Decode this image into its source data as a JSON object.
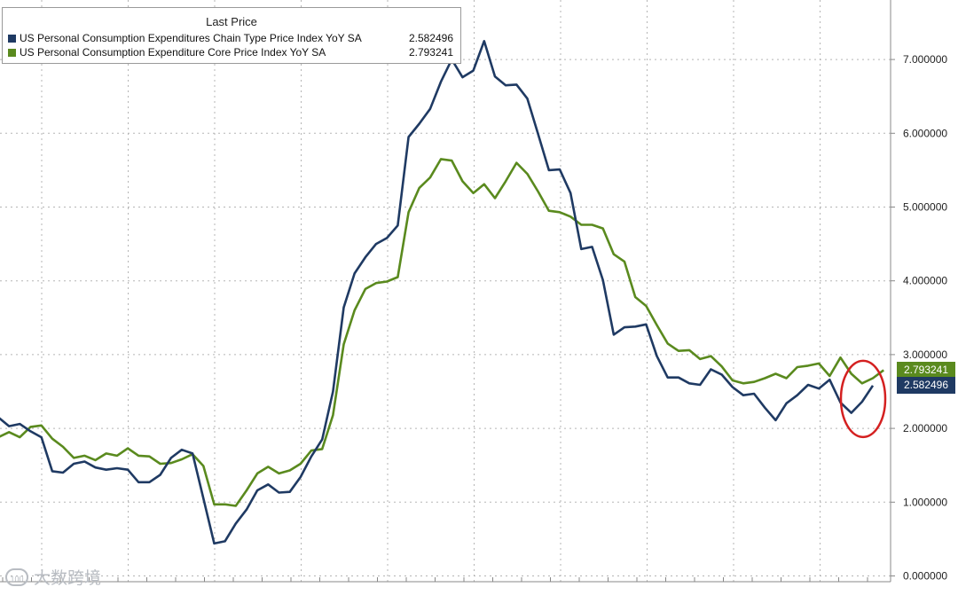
{
  "chart_data": {
    "type": "line",
    "title": "",
    "xlabel": "",
    "ylabel": "",
    "ylim": [
      0,
      7.7
    ],
    "y_ticks": [
      "0.000000",
      "1.000000",
      "2.000000",
      "3.000000",
      "4.000000",
      "5.000000",
      "6.000000",
      "7.000000"
    ],
    "grid": true,
    "y_axis_side": "right",
    "legend": {
      "title": "Last Price",
      "placement": "top-left"
    },
    "series": [
      {
        "name": "US Personal Consumption Expenditures Chain Type Price Index YoY SA",
        "last_value": "2.582496",
        "color": "#1f3a63",
        "values": [
          2.15,
          2.03,
          2.06,
          1.96,
          1.88,
          1.42,
          1.4,
          1.52,
          1.55,
          1.47,
          1.44,
          1.46,
          1.44,
          1.27,
          1.27,
          1.37,
          1.6,
          1.71,
          1.66,
          1.05,
          0.44,
          0.47,
          0.71,
          0.9,
          1.16,
          1.24,
          1.13,
          1.14,
          1.34,
          1.62,
          1.85,
          2.5,
          3.64,
          4.1,
          4.32,
          4.5,
          4.58,
          4.75,
          5.95,
          6.13,
          6.33,
          6.7,
          7.0,
          6.76,
          6.85,
          7.25,
          6.77,
          6.65,
          6.66,
          6.47,
          5.99,
          5.5,
          5.51,
          5.19,
          4.43,
          4.46,
          4.01,
          3.27,
          3.37,
          3.38,
          3.41,
          2.98,
          2.69,
          2.69,
          2.61,
          2.59,
          2.8,
          2.73,
          2.56,
          2.45,
          2.47,
          2.28,
          2.11,
          2.34,
          2.45,
          2.59,
          2.54,
          2.66,
          2.35,
          2.21,
          2.36,
          2.58
        ]
      },
      {
        "name": "US Personal Consumption Expenditure Core Price Index YoY SA",
        "last_value": "2.793241",
        "color": "#5a8a1e",
        "values": [
          1.88,
          1.95,
          1.88,
          2.02,
          2.04,
          1.86,
          1.75,
          1.6,
          1.63,
          1.57,
          1.66,
          1.63,
          1.73,
          1.63,
          1.62,
          1.52,
          1.53,
          1.58,
          1.65,
          1.49,
          0.97,
          0.97,
          0.95,
          1.16,
          1.39,
          1.48,
          1.39,
          1.43,
          1.52,
          1.7,
          1.72,
          2.18,
          3.14,
          3.6,
          3.89,
          3.97,
          3.99,
          4.05,
          4.93,
          5.26,
          5.4,
          5.65,
          5.63,
          5.35,
          5.19,
          5.31,
          5.12,
          5.35,
          5.6,
          5.45,
          5.21,
          4.95,
          4.93,
          4.87,
          4.76,
          4.76,
          4.71,
          4.36,
          4.26,
          3.78,
          3.66,
          3.4,
          3.15,
          3.05,
          3.06,
          2.94,
          2.98,
          2.84,
          2.65,
          2.61,
          2.63,
          2.68,
          2.74,
          2.68,
          2.83,
          2.85,
          2.88,
          2.71,
          2.96,
          2.74,
          2.61,
          2.68,
          2.79
        ]
      }
    ],
    "annotations": [
      {
        "type": "circle",
        "target": "latest values"
      }
    ]
  },
  "watermark": {
    "text": "大数跨境",
    "icon": "logo-icon",
    "icon_text": "100"
  }
}
